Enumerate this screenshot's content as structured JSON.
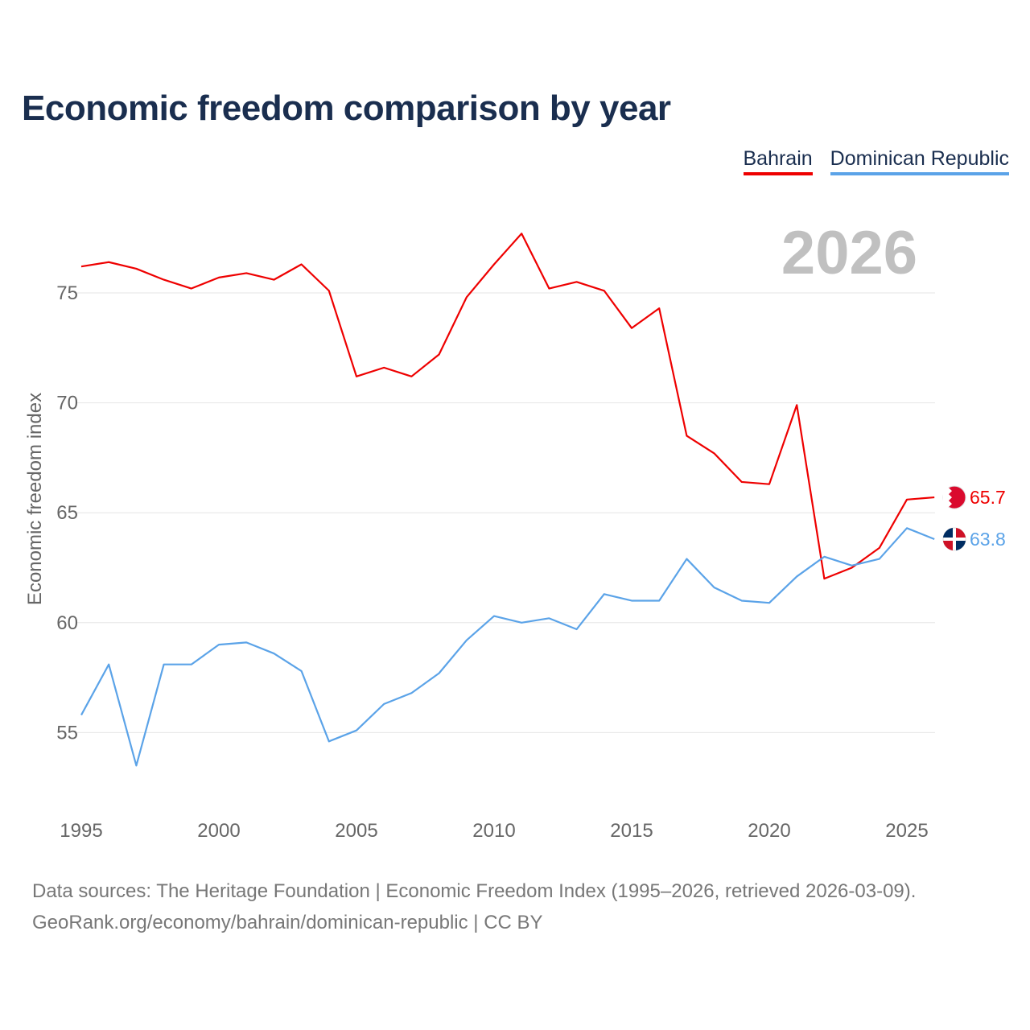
{
  "title": "Economic freedom comparison by year",
  "source_line1": "Data sources: The Heritage Foundation | Economic Freedom Index (1995–2026, retrieved 2026-03-09).",
  "source_line2": "GeoRank.org/economy/bahrain/dominican-republic | CC BY",
  "chart_data": {
    "type": "line",
    "title": "Economic freedom comparison by year",
    "ylabel": "Economic freedom index",
    "xlabel": "",
    "current_year_label": "2026",
    "xlim": [
      1995,
      2026
    ],
    "ylim": [
      51.5,
      78.5
    ],
    "xticks": [
      1995,
      2000,
      2005,
      2010,
      2015,
      2020,
      2025
    ],
    "yticks": [
      55,
      60,
      65,
      70,
      75
    ],
    "grid": true,
    "legend_position": "top-right",
    "x": [
      1995,
      1996,
      1997,
      1998,
      1999,
      2000,
      2001,
      2002,
      2003,
      2004,
      2005,
      2006,
      2007,
      2008,
      2009,
      2010,
      2011,
      2012,
      2013,
      2014,
      2015,
      2016,
      2017,
      2018,
      2019,
      2020,
      2021,
      2022,
      2023,
      2024,
      2025,
      2026
    ],
    "series": [
      {
        "name": "Bahrain",
        "color": "#ee0000",
        "end_label": "65.7",
        "values": [
          76.2,
          76.4,
          76.1,
          75.6,
          75.2,
          75.7,
          75.9,
          75.6,
          76.3,
          75.1,
          71.2,
          71.6,
          71.2,
          72.2,
          74.8,
          76.3,
          77.7,
          75.2,
          75.5,
          75.1,
          73.4,
          74.3,
          68.5,
          67.7,
          66.4,
          66.3,
          69.9,
          62.0,
          62.5,
          63.4,
          65.6,
          65.7
        ]
      },
      {
        "name": "Dominican Republic",
        "color": "#5ba3e8",
        "end_label": "63.8",
        "values": [
          55.8,
          58.1,
          53.5,
          58.1,
          58.1,
          59.0,
          59.1,
          58.6,
          57.8,
          54.6,
          55.1,
          56.3,
          56.8,
          57.7,
          59.2,
          60.3,
          60.0,
          60.2,
          59.7,
          61.3,
          61.0,
          61.0,
          62.9,
          61.6,
          61.0,
          60.9,
          62.1,
          63.0,
          62.6,
          62.9,
          64.3,
          63.8
        ]
      }
    ]
  }
}
